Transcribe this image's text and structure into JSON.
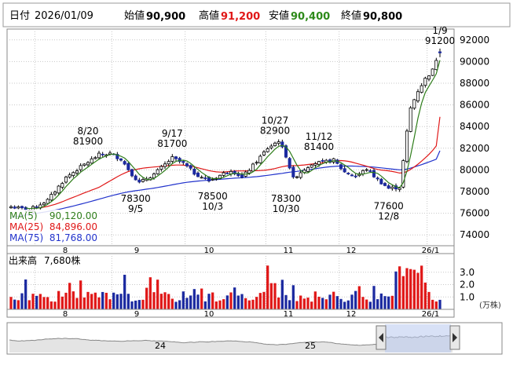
{
  "header": {
    "date_label": "日付",
    "date_value": "2026/01/09",
    "open_label": "始値",
    "open_value": "90,900",
    "high_label": "高値",
    "high_value": "91,200",
    "low_label": "安値",
    "low_value": "90,400",
    "close_label": "終値",
    "close_value": "90,800"
  },
  "colors": {
    "up": "#ffffff",
    "down": "#1c2aa0",
    "ma5": "#2e7d1a",
    "ma25": "#e01818",
    "ma75": "#2233cc",
    "vol_up": "#e01818",
    "vol_down": "#1c2aa0",
    "grid": "#c8c8c8",
    "nav_fill": "#b8c8ee"
  },
  "price_panel": {
    "y_ticks": [
      "92000",
      "90000",
      "88000",
      "86000",
      "84000",
      "82000",
      "80000",
      "78000",
      "76000",
      "74000"
    ],
    "x_ticks": [
      "8",
      "9",
      "10",
      "11",
      "12",
      "26/1"
    ],
    "legend": [
      {
        "label": "MA(5)",
        "value": "90,120.00"
      },
      {
        "label": "MA(25)",
        "value": "84,896.00"
      },
      {
        "label": "MA(75)",
        "value": "81,768.00"
      }
    ],
    "annotations": [
      {
        "date": "8/20",
        "value": "81900",
        "pos": "above"
      },
      {
        "date": "9/17",
        "value": "81700",
        "pos": "above"
      },
      {
        "date": "10/27",
        "value": "82900",
        "pos": "above"
      },
      {
        "date": "11/12",
        "value": "81400",
        "pos": "above"
      },
      {
        "date": "1/9",
        "value": "91200",
        "pos": "above"
      },
      {
        "date": "9/5",
        "value": "78300",
        "pos": "below"
      },
      {
        "date": "10/3",
        "value": "78500",
        "pos": "below"
      },
      {
        "date": "10/30",
        "value": "78300",
        "pos": "below"
      },
      {
        "date": "12/8",
        "value": "77600",
        "pos": "below"
      }
    ]
  },
  "volume_panel": {
    "label": "出来高",
    "value": "7,680株",
    "y_ticks": [
      "3.0",
      "2.0",
      "1.0"
    ],
    "unit": "(万株)",
    "x_ticks": [
      "8",
      "9",
      "10",
      "11",
      "12",
      "26/1"
    ]
  },
  "navigator": {
    "labels": [
      "24",
      "25"
    ]
  },
  "chart_data": {
    "type": "candlestick",
    "ylim": [
      73000,
      93000
    ],
    "volume_ylim": [
      0,
      4
    ],
    "key_points": [
      {
        "date": "8/20",
        "high": 81900
      },
      {
        "date": "9/5",
        "low": 78300
      },
      {
        "date": "9/17",
        "high": 81700
      },
      {
        "date": "10/3",
        "low": 78500
      },
      {
        "date": "10/27",
        "high": 82900
      },
      {
        "date": "10/30",
        "low": 78300
      },
      {
        "date": "11/12",
        "high": 81400
      },
      {
        "date": "12/8",
        "low": 77600
      },
      {
        "date": "1/9",
        "open": 90900,
        "high": 91200,
        "low": 90400,
        "close": 90800
      }
    ],
    "ma_last": {
      "MA(5)": 90120,
      "MA(25)": 84896,
      "MA(75)": 81768
    },
    "last_volume": 7680
  }
}
